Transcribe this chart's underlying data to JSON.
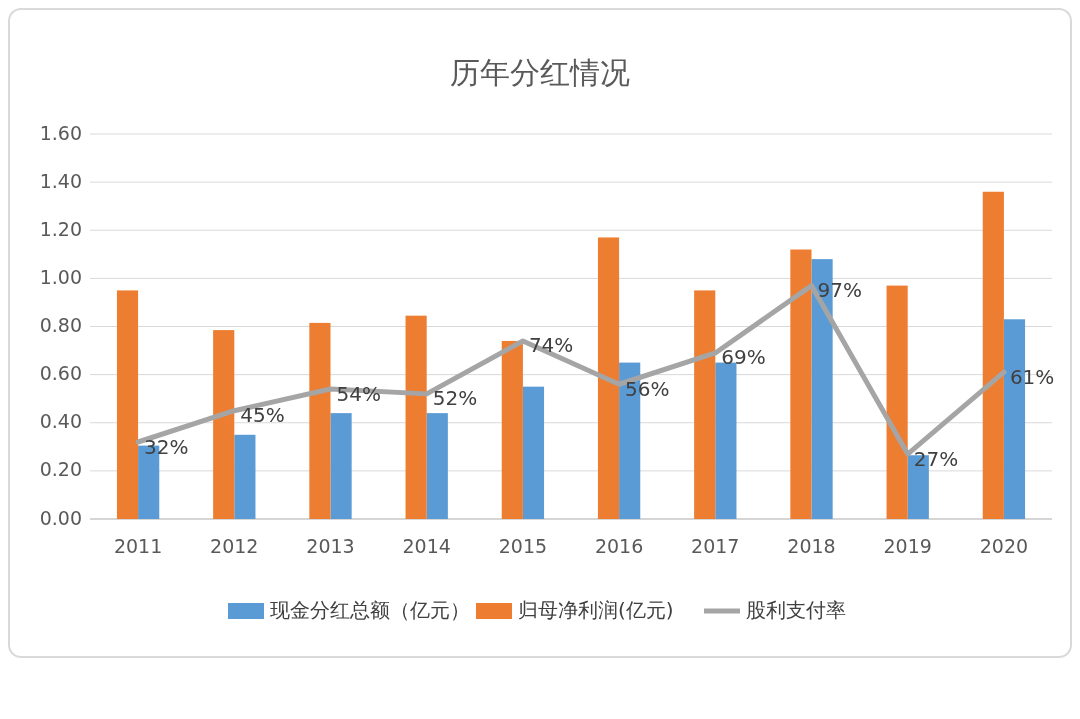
{
  "chart_data": {
    "type": "bar",
    "title": "历年分红情况",
    "categories": [
      "2011",
      "2012",
      "2013",
      "2014",
      "2015",
      "2016",
      "2017",
      "2018",
      "2019",
      "2020"
    ],
    "series": [
      {
        "name": "现金分红总额（亿元）",
        "color": "#5b9bd5",
        "values": [
          0.305,
          0.35,
          0.44,
          0.44,
          0.55,
          0.65,
          0.65,
          1.08,
          0.265,
          0.83
        ]
      },
      {
        "name": "归母净利润(亿元)",
        "color": "#ed7d31",
        "values": [
          0.95,
          0.785,
          0.815,
          0.845,
          0.74,
          1.17,
          0.95,
          1.12,
          0.97,
          1.36
        ]
      },
      {
        "name": "股利支付率",
        "type": "line",
        "color": "#a5a5a5",
        "values": [
          0.32,
          0.45,
          0.54,
          0.52,
          0.74,
          0.56,
          0.69,
          0.97,
          0.27,
          0.61
        ],
        "value_labels": [
          "32%",
          "45%",
          "54%",
          "52%",
          "74%",
          "56%",
          "69%",
          "97%",
          "27%",
          "61%"
        ]
      }
    ],
    "ylim": [
      0,
      1.6
    ],
    "yticks": [
      {
        "value": 0,
        "label": "0.00"
      },
      {
        "value": 0.2,
        "label": "0.20"
      },
      {
        "value": 0.4,
        "label": "0.40"
      },
      {
        "value": 0.6,
        "label": "0.60"
      },
      {
        "value": 0.8,
        "label": "0.80"
      },
      {
        "value": 1,
        "label": "1.00"
      },
      {
        "value": 1.2,
        "label": "1.20"
      },
      {
        "value": 1.4,
        "label": "1.40"
      },
      {
        "value": 1.6,
        "label": "1.60"
      }
    ],
    "grid": "y",
    "legend": "bottom",
    "marker": "none",
    "line_style": "solid"
  }
}
